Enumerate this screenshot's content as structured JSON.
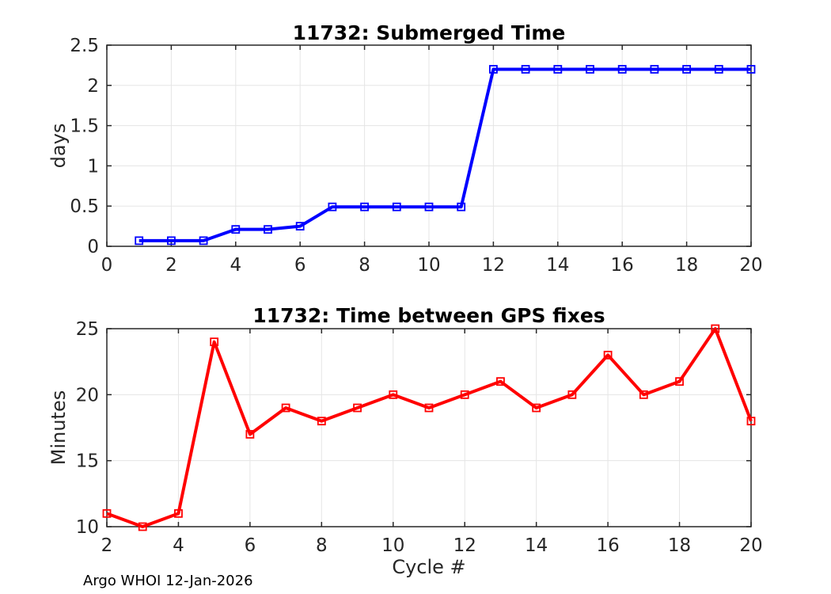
{
  "page": {
    "footer": "Argo WHOI 12-Jan-2026"
  },
  "style": {
    "background": "#ffffff",
    "axis_color": "#262626",
    "grid_color": "#e5e5e5",
    "tick_label_color": "#262626",
    "title_color": "#000000",
    "series_blue": "#0000ff",
    "series_red": "#ff0000"
  },
  "chart_data": [
    {
      "type": "line",
      "title": "11732: Submerged Time",
      "xlabel": "",
      "ylabel": "days",
      "color": "#0000ff",
      "marker": "open-square",
      "grid": true,
      "legend": null,
      "xlim": [
        0,
        20
      ],
      "ylim": [
        0,
        2.5
      ],
      "xticks": [
        0,
        2,
        4,
        6,
        8,
        10,
        12,
        14,
        16,
        18,
        20
      ],
      "yticks": [
        0,
        0.5,
        1,
        1.5,
        2,
        2.5
      ],
      "x": [
        1,
        2,
        3,
        4,
        5,
        6,
        7,
        8,
        9,
        10,
        11,
        12,
        13,
        14,
        15,
        16,
        17,
        18,
        19,
        20
      ],
      "values": [
        0.07,
        0.07,
        0.07,
        0.21,
        0.21,
        0.25,
        0.49,
        0.49,
        0.49,
        0.49,
        0.49,
        2.2,
        2.2,
        2.2,
        2.2,
        2.2,
        2.2,
        2.2,
        2.2,
        2.2
      ]
    },
    {
      "type": "line",
      "title": "11732: Time between GPS fixes",
      "xlabel": "Cycle #",
      "ylabel": "Minutes",
      "color": "#ff0000",
      "marker": "open-square",
      "grid": true,
      "legend": null,
      "xlim": [
        2,
        20
      ],
      "ylim": [
        10,
        25
      ],
      "xticks": [
        2,
        4,
        6,
        8,
        10,
        12,
        14,
        16,
        18,
        20
      ],
      "yticks": [
        10,
        15,
        20,
        25
      ],
      "x": [
        2,
        3,
        4,
        5,
        6,
        7,
        8,
        9,
        10,
        11,
        12,
        13,
        14,
        15,
        16,
        17,
        18,
        19,
        20
      ],
      "values": [
        11,
        10,
        11,
        24,
        17,
        19,
        18,
        19,
        20,
        19,
        20,
        21,
        19,
        20,
        23,
        20,
        21,
        25,
        18
      ]
    }
  ]
}
